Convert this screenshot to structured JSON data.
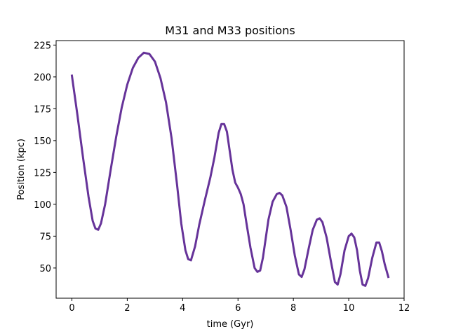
{
  "chart_data": {
    "type": "line",
    "title": "M31 and M33 positions",
    "x_label": "time (Gyr)",
    "y_label": "Position (kpc)",
    "x": [
      0,
      0.2,
      0.4,
      0.6,
      0.75,
      0.85,
      0.95,
      1.05,
      1.2,
      1.4,
      1.6,
      1.8,
      2.0,
      2.2,
      2.4,
      2.6,
      2.8,
      3.0,
      3.2,
      3.4,
      3.6,
      3.8,
      3.95,
      4.1,
      4.2,
      4.3,
      4.45,
      4.6,
      4.8,
      5.0,
      5.15,
      5.3,
      5.4,
      5.5,
      5.6,
      5.7,
      5.8,
      5.9,
      6.0,
      6.1,
      6.2,
      6.3,
      6.45,
      6.6,
      6.7,
      6.8,
      6.9,
      7.0,
      7.1,
      7.25,
      7.4,
      7.5,
      7.6,
      7.75,
      7.9,
      8.05,
      8.2,
      8.3,
      8.4,
      8.55,
      8.7,
      8.85,
      8.95,
      9.05,
      9.2,
      9.35,
      9.5,
      9.6,
      9.7,
      9.85,
      10.0,
      10.1,
      10.2,
      10.3,
      10.4,
      10.5,
      10.6,
      10.7,
      10.85,
      11.0,
      11.1,
      11.2,
      11.3,
      11.43
    ],
    "series": [
      {
        "color": "#663399",
        "values": [
          201,
          170,
          137,
          106,
          87,
          81,
          80,
          85,
          100,
          127,
          153,
          176,
          194,
          207,
          215,
          219,
          218,
          212,
          199,
          180,
          152,
          115,
          85,
          64,
          57,
          56,
          67,
          84,
          103,
          121,
          137,
          156,
          163,
          163,
          157,
          142,
          127,
          117,
          113,
          108,
          100,
          86,
          66,
          50,
          47,
          48,
          58,
          73,
          88,
          102,
          108,
          109,
          107,
          98,
          80,
          60,
          45,
          43,
          49,
          65,
          80,
          88,
          89,
          86,
          74,
          56,
          39,
          37,
          45,
          64,
          75,
          77,
          74,
          64,
          48,
          37,
          36,
          42,
          58,
          70,
          70,
          63,
          53,
          43
        ]
      }
    ],
    "xlim": [
      -0.57,
      12.0
    ],
    "xticks": [
      0,
      2,
      4,
      6,
      8,
      10,
      12
    ],
    "ylim": [
      26.3,
      228.5
    ],
    "yticks": [
      50,
      75,
      100,
      125,
      150,
      175,
      200,
      225
    ]
  }
}
